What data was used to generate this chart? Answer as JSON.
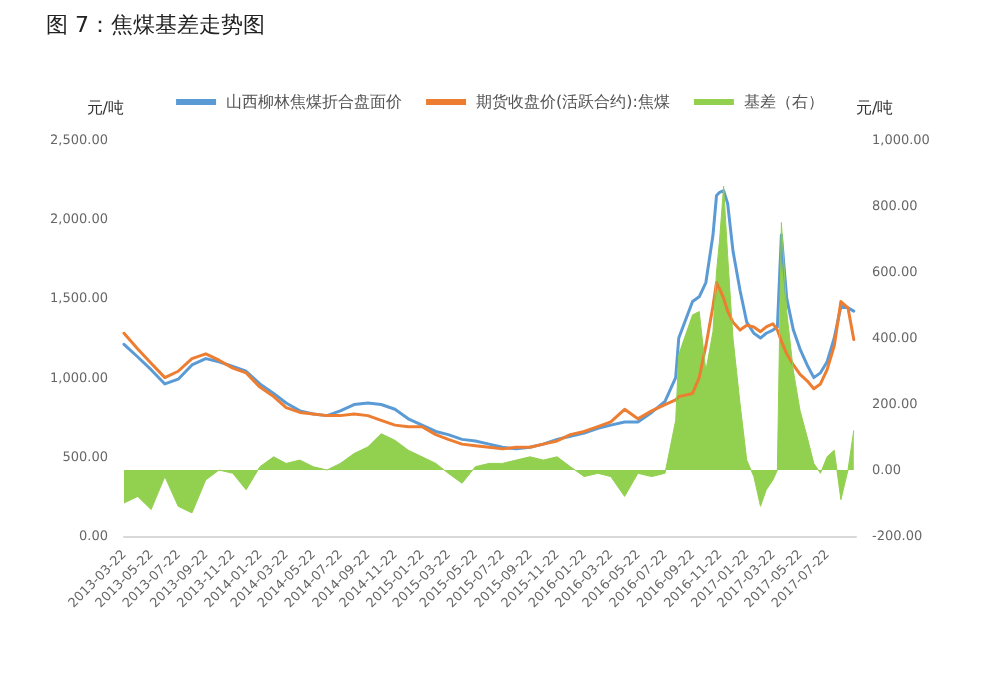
{
  "chart_data": {
    "type": "line",
    "title": "图 7：焦煤基差走势图",
    "ylabel": "元/吨",
    "y2label": "元/吨",
    "x": [
      "2013-03-22",
      "2013-04-22",
      "2013-05-22",
      "2013-06-22",
      "2013-07-22",
      "2013-08-22",
      "2013-09-22",
      "2013-10-22",
      "2013-11-22",
      "2013-12-22",
      "2014-01-22",
      "2014-02-22",
      "2014-03-22",
      "2014-04-22",
      "2014-05-22",
      "2014-06-22",
      "2014-07-22",
      "2014-08-22",
      "2014-09-22",
      "2014-10-22",
      "2014-11-22",
      "2014-12-22",
      "2015-01-22",
      "2015-02-22",
      "2015-03-22",
      "2015-04-22",
      "2015-05-22",
      "2015-06-22",
      "2015-07-22",
      "2015-08-22",
      "2015-09-22",
      "2015-10-22",
      "2015-11-22",
      "2015-12-22",
      "2016-01-22",
      "2016-02-22",
      "2016-03-22",
      "2016-04-22",
      "2016-05-22",
      "2016-06-22",
      "2016-07-22",
      "2016-08-15",
      "2016-08-22",
      "2016-09-22",
      "2016-10-07",
      "2016-10-22",
      "2016-11-07",
      "2016-11-15",
      "2016-11-22",
      "2016-12-01",
      "2016-12-10",
      "2016-12-22",
      "2017-01-07",
      "2017-01-22",
      "2017-02-07",
      "2017-02-22",
      "2017-03-07",
      "2017-03-22",
      "2017-04-01",
      "2017-04-10",
      "2017-04-22",
      "2017-05-07",
      "2017-05-22",
      "2017-06-07",
      "2017-06-22",
      "2017-07-07",
      "2017-07-22",
      "2017-08-07",
      "2017-08-22",
      "2017-09-07",
      "2017-09-20"
    ],
    "series": [
      {
        "name": "山西柳林焦煤折合盘面价",
        "color": "#5b9bd5",
        "values": [
          1210,
          1130,
          1050,
          960,
          990,
          1080,
          1120,
          1100,
          1070,
          1040,
          960,
          900,
          840,
          790,
          770,
          760,
          790,
          830,
          840,
          830,
          800,
          740,
          700,
          660,
          640,
          610,
          600,
          580,
          560,
          550,
          560,
          580,
          610,
          630,
          650,
          680,
          700,
          720,
          720,
          780,
          850,
          1000,
          1250,
          1480,
          1510,
          1600,
          1900,
          2150,
          2170,
          2180,
          2100,
          1800,
          1550,
          1350,
          1280,
          1250,
          1280,
          1300,
          1320,
          1900,
          1500,
          1300,
          1180,
          1080,
          1000,
          1030,
          1100,
          1250,
          1450,
          1440,
          1420
        ]
      },
      {
        "name": "期货收盘价(活跃合约):焦煤",
        "color": "#ed7d31",
        "values": [
          1280,
          1180,
          1090,
          1000,
          1040,
          1120,
          1150,
          1110,
          1060,
          1030,
          940,
          880,
          810,
          780,
          770,
          760,
          760,
          770,
          760,
          730,
          700,
          690,
          690,
          640,
          610,
          580,
          570,
          560,
          550,
          560,
          560,
          580,
          600,
          640,
          660,
          690,
          720,
          800,
          740,
          790,
          830,
          860,
          880,
          900,
          1000,
          1200,
          1450,
          1600,
          1560,
          1500,
          1420,
          1350,
          1300,
          1330,
          1320,
          1290,
          1320,
          1340,
          1300,
          1230,
          1150,
          1080,
          1020,
          980,
          930,
          960,
          1050,
          1200,
          1480,
          1440,
          1240
        ]
      },
      {
        "name": "基差（右）",
        "type": "area",
        "axis": "y2",
        "color": "#92d050",
        "values": [
          -100,
          -80,
          -120,
          -20,
          -110,
          -130,
          -30,
          0,
          -10,
          -60,
          10,
          40,
          20,
          30,
          10,
          0,
          20,
          50,
          70,
          110,
          90,
          60,
          40,
          20,
          -10,
          -40,
          10,
          20,
          20,
          30,
          40,
          30,
          40,
          10,
          -20,
          -10,
          -20,
          -80,
          -10,
          -20,
          -10,
          150,
          350,
          470,
          480,
          300,
          420,
          600,
          700,
          860,
          650,
          400,
          200,
          30,
          -20,
          -110,
          -60,
          -30,
          0,
          750,
          480,
          300,
          180,
          100,
          20,
          -10,
          40,
          60,
          -90,
          0,
          120
        ]
      }
    ],
    "xlim": [
      "2013-03-22",
      "2017-09-25"
    ],
    "xticks": [
      "2013-03-22",
      "2013-05-22",
      "2013-07-22",
      "2013-09-22",
      "2013-11-22",
      "2014-01-22",
      "2014-03-22",
      "2014-05-22",
      "2014-07-22",
      "2014-09-22",
      "2014-11-22",
      "2015-01-22",
      "2015-03-22",
      "2015-05-22",
      "2015-07-22",
      "2015-09-22",
      "2015-11-22",
      "2016-01-22",
      "2016-03-22",
      "2016-05-22",
      "2016-07-22",
      "2016-09-22",
      "2016-11-22",
      "2017-01-22",
      "2017-03-22",
      "2017-05-22",
      "2017-07-22"
    ],
    "ylim": [
      0,
      2500
    ],
    "yticks": [
      {
        "value": 0,
        "label": "0.00"
      },
      {
        "value": 500,
        "label": "500.00"
      },
      {
        "value": 1000,
        "label": "1,000.00"
      },
      {
        "value": 1500,
        "label": "1,500.00"
      },
      {
        "value": 2000,
        "label": "2,000.00"
      },
      {
        "value": 2500,
        "label": "2,500.00"
      }
    ],
    "y2lim": [
      -200,
      1000
    ],
    "y2ticks": [
      {
        "value": -200,
        "label": "-200.00"
      },
      {
        "value": 0,
        "label": "0.00"
      },
      {
        "value": 200,
        "label": "200.00"
      },
      {
        "value": 400,
        "label": "400.00"
      },
      {
        "value": 600,
        "label": "600.00"
      },
      {
        "value": 800,
        "label": "800.00"
      },
      {
        "value": 1000,
        "label": "1,000.00"
      }
    ],
    "legend": "top",
    "marker": "none",
    "line_style": "solid"
  }
}
